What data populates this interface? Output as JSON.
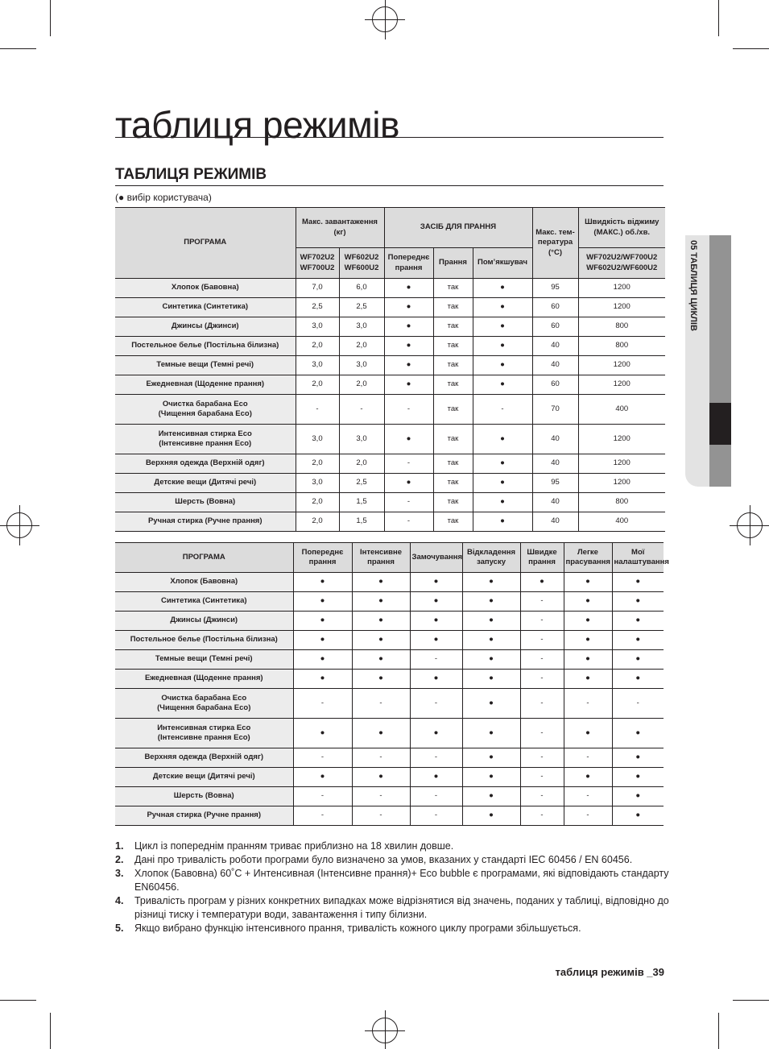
{
  "page": {
    "title": "таблиця режимів",
    "section_title": "ТАБЛИЦЯ РЕЖИМІВ",
    "legend": "(● вибір користувача)",
    "side_tab": "05 ТАБЛИЦЯ ЦИКЛІВ",
    "footer": "таблиця режимів _39"
  },
  "table1": {
    "headers": {
      "program": "ПРОГРАМА",
      "max_load": "Макс. завантаження (кг)",
      "detergent": "ЗАСІБ ДЛЯ ПРАННЯ",
      "max_temp": "Макс. тем-пература (°C)",
      "spin": "Швидкість віджиму (МАКС.) об./хв.",
      "load_a": "WF702U2 WF700U2",
      "load_b": "WF602U2 WF600U2",
      "prewash": "Попереднє прання",
      "wash": "Прання",
      "softener": "Пом’якшувач",
      "spin_models": "WF702U2/WF700U2 WF602U2/WF600U2"
    },
    "rows": [
      [
        "Хлопок (Бавовна)",
        "7,0",
        "6,0",
        "●",
        "так",
        "●",
        "95",
        "1200"
      ],
      [
        "Синтетика (Синтетика)",
        "2,5",
        "2,5",
        "●",
        "так",
        "●",
        "60",
        "1200"
      ],
      [
        "Джинсы (Джинси)",
        "3,0",
        "3,0",
        "●",
        "так",
        "●",
        "60",
        "800"
      ],
      [
        "Постельное белье (Постільна білизна)",
        "2,0",
        "2,0",
        "●",
        "так",
        "●",
        "40",
        "800"
      ],
      [
        "Темные вещи (Темні речі)",
        "3,0",
        "3,0",
        "●",
        "так",
        "●",
        "40",
        "1200"
      ],
      [
        "Ежедневная (Щоденне прання)",
        "2,0",
        "2,0",
        "●",
        "так",
        "●",
        "60",
        "1200"
      ],
      [
        "Очистка барабана Eco\n(Чищення барабана Eco)",
        "-",
        "-",
        "-",
        "так",
        "-",
        "70",
        "400"
      ],
      [
        "Интенсивная стирка Eco\n(Інтенсивне прання Eco)",
        "3,0",
        "3,0",
        "●",
        "так",
        "●",
        "40",
        "1200"
      ],
      [
        "Верхняя одежда (Верхній одяг)",
        "2,0",
        "2,0",
        "-",
        "так",
        "●",
        "40",
        "1200"
      ],
      [
        "Детские вещи (Дитячі речі)",
        "3,0",
        "2,5",
        "●",
        "так",
        "●",
        "95",
        "1200"
      ],
      [
        "Шерсть (Вовна)",
        "2,0",
        "1,5",
        "-",
        "так",
        "●",
        "40",
        "800"
      ],
      [
        "Ручная стирка (Ручне прання)",
        "2,0",
        "1,5",
        "-",
        "так",
        "●",
        "40",
        "400"
      ]
    ]
  },
  "table2": {
    "headers": [
      "ПРОГРАМА",
      "Попереднє прання",
      "Інтенсивне прання",
      "Замочування",
      "Відкладення запуску",
      "Швидке прання",
      "Легке прасування",
      "Мої налаштування"
    ],
    "rows": [
      [
        "Хлопок (Бавовна)",
        "●",
        "●",
        "●",
        "●",
        "●",
        "●",
        "●"
      ],
      [
        "Синтетика (Синтетика)",
        "●",
        "●",
        "●",
        "●",
        "-",
        "●",
        "●"
      ],
      [
        "Джинсы (Джинси)",
        "●",
        "●",
        "●",
        "●",
        "-",
        "●",
        "●"
      ],
      [
        "Постельное белье (Постільна білизна)",
        "●",
        "●",
        "●",
        "●",
        "-",
        "●",
        "●"
      ],
      [
        "Темные вещи (Темні речі)",
        "●",
        "●",
        "-",
        "●",
        "-",
        "●",
        "●"
      ],
      [
        "Ежедневная (Щоденне прання)",
        "●",
        "●",
        "●",
        "●",
        "-",
        "●",
        "●"
      ],
      [
        "Очистка барабана Eco\n(Чищення барабана Eco)",
        "-",
        "-",
        "-",
        "●",
        "-",
        "-",
        "-"
      ],
      [
        "Интенсивная стирка Eco\n(Інтенсивне прання Eco)",
        "●",
        "●",
        "●",
        "●",
        "-",
        "●",
        "●"
      ],
      [
        "Верхняя одежда (Верхній одяг)",
        "-",
        "-",
        "-",
        "●",
        "-",
        "-",
        "●"
      ],
      [
        "Детские вещи (Дитячі речі)",
        "●",
        "●",
        "●",
        "●",
        "-",
        "●",
        "●"
      ],
      [
        "Шерсть (Вовна)",
        "-",
        "-",
        "-",
        "●",
        "-",
        "-",
        "●"
      ],
      [
        "Ручная стирка (Ручне прання)",
        "-",
        "-",
        "-",
        "●",
        "-",
        "-",
        "●"
      ]
    ]
  },
  "notes": [
    {
      "num": "1.",
      "text": "Цикл із попереднім пранням триває приблизно на 18 хвилин довше."
    },
    {
      "num": "2.",
      "text": "Дані про тривалість роботи програми було визначено за умов, вказаних у стандарті IEC 60456 / EN 60456."
    },
    {
      "num": "3.",
      "text": "Хлопок (Бавовна) 60˚C + Интенсивная (Інтенсивне прання)+ Eco bubble є програмами, які відповідають стандарту EN60456."
    },
    {
      "num": "4.",
      "text": "Тривалість програм у різних конкретних випадках може відрізнятися від значень, поданих у таблиці, відповідно до різниці тиску і температури води, завантаження і типу білизни."
    },
    {
      "num": "5.",
      "text": "Якщо вибрано функцію інтенсивного прання, тривалість кожного циклу програми збільшується."
    }
  ]
}
